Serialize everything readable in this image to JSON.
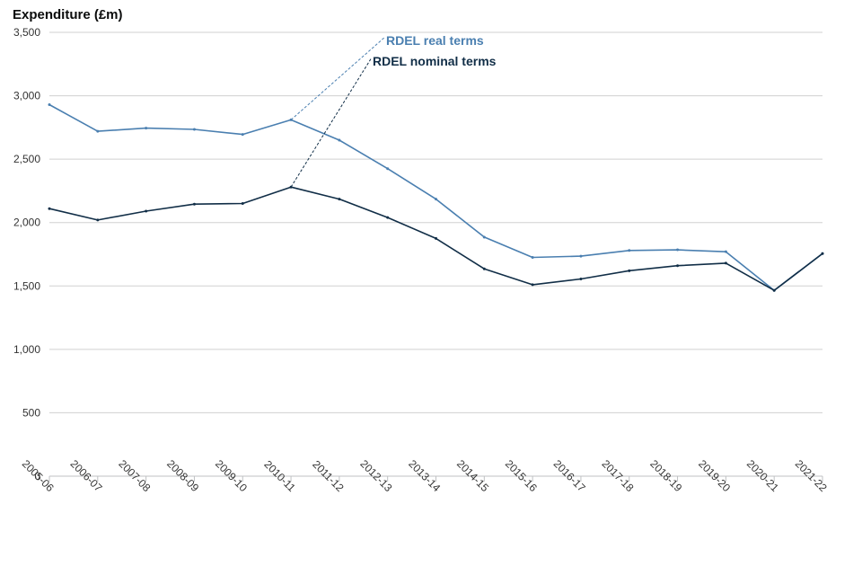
{
  "chart_data": {
    "type": "line",
    "ylabel": "Expenditure (£m)",
    "xlabel": "",
    "ylim": [
      0,
      3500
    ],
    "yticks": [
      0,
      500,
      1000,
      1500,
      2000,
      2500,
      3000,
      3500
    ],
    "ytick_labels": [
      "0",
      "500",
      "1,000",
      "1,500",
      "2,000",
      "2,500",
      "3,000",
      "3,500"
    ],
    "grid": true,
    "categories": [
      "2005-06",
      "2006-07",
      "2007-08",
      "2008-09",
      "2009-10",
      "2010-11",
      "2011-12",
      "2012-13",
      "2013-14",
      "2014-15",
      "2015-16",
      "2016-17",
      "2017-18",
      "2018-19",
      "2019-20",
      "2020-21",
      "2021-22"
    ],
    "series": [
      {
        "name": "RDEL real terms",
        "color": "#4a7fb0",
        "values": [
          2930,
          2720,
          2745,
          2735,
          2695,
          2810,
          2650,
          2425,
          2185,
          1885,
          1725,
          1735,
          1780,
          1785,
          1770,
          1465,
          1755
        ]
      },
      {
        "name": "RDEL nominal terms",
        "color": "#112e47",
        "values": [
          2110,
          2020,
          2090,
          2145,
          2150,
          2280,
          2185,
          2040,
          1875,
          1635,
          1510,
          1555,
          1620,
          1660,
          1680,
          1465,
          1755
        ]
      }
    ]
  }
}
